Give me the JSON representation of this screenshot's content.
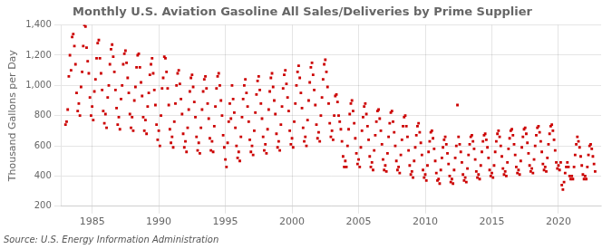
{
  "chart_data": {
    "type": "scatter",
    "title": "Monthly U.S. Aviation Gasoline All Sales/Deliveries by Prime Supplier",
    "ylabel": "Thousand Gallons per Day",
    "source": "Source: U.S. Energy Information Administration",
    "color": "#cc0000",
    "marker": "square",
    "grid": true,
    "xlim": [
      1982.7,
      2023.2
    ],
    "xticks": [
      1985,
      1990,
      1995,
      2000,
      2005,
      2010,
      2015,
      2020
    ],
    "ylim": [
      200,
      1400
    ],
    "yticks": [
      200,
      400,
      600,
      800,
      {
        "value": 1000,
        "label": "1,000"
      },
      {
        "value": 1200,
        "label": "1,200"
      },
      {
        "value": 1400,
        "label": "1,400"
      }
    ],
    "x": [
      1983.0,
      1983.083,
      1983.167,
      1983.25,
      1983.333,
      1983.417,
      1983.5,
      1983.583,
      1983.667,
      1983.75,
      1983.833,
      1983.917,
      1984.0,
      1984.083,
      1984.167,
      1984.25,
      1984.333,
      1984.417,
      1984.5,
      1984.583,
      1984.667,
      1984.75,
      1984.833,
      1984.917,
      1985.0,
      1985.083,
      1985.167,
      1985.25,
      1985.333,
      1985.417,
      1985.5,
      1985.583,
      1985.667,
      1985.75,
      1985.833,
      1985.917,
      1986.0,
      1986.083,
      1986.167,
      1986.25,
      1986.333,
      1986.417,
      1986.5,
      1986.583,
      1986.667,
      1986.75,
      1986.833,
      1986.917,
      1987.0,
      1987.083,
      1987.167,
      1987.25,
      1987.333,
      1987.417,
      1987.5,
      1987.583,
      1987.667,
      1987.75,
      1987.833,
      1987.917,
      1988.0,
      1988.083,
      1988.167,
      1988.25,
      1988.333,
      1988.417,
      1988.5,
      1988.583,
      1988.667,
      1988.75,
      1988.833,
      1988.917,
      1989.0,
      1989.083,
      1989.167,
      1989.25,
      1989.333,
      1989.417,
      1989.5,
      1989.583,
      1989.667,
      1989.75,
      1989.833,
      1989.917,
      1990.0,
      1990.083,
      1990.167,
      1990.25,
      1990.333,
      1990.417,
      1990.5,
      1990.583,
      1990.667,
      1990.75,
      1990.833,
      1990.917,
      1991.0,
      1991.083,
      1991.167,
      1991.25,
      1991.333,
      1991.417,
      1991.5,
      1991.583,
      1991.667,
      1991.75,
      1991.833,
      1991.917,
      1992.0,
      1992.083,
      1992.167,
      1992.25,
      1992.333,
      1992.417,
      1992.5,
      1992.583,
      1992.667,
      1992.75,
      1992.833,
      1992.917,
      1993.0,
      1993.083,
      1993.167,
      1993.25,
      1993.333,
      1993.417,
      1993.5,
      1993.583,
      1993.667,
      1993.75,
      1993.833,
      1993.917,
      1994.0,
      1994.083,
      1994.167,
      1994.25,
      1994.333,
      1994.417,
      1994.5,
      1994.583,
      1994.667,
      1994.75,
      1994.833,
      1994.917,
      1995.0,
      1995.083,
      1995.167,
      1995.25,
      1995.333,
      1995.417,
      1995.5,
      1995.583,
      1995.667,
      1995.75,
      1995.833,
      1995.917,
      1996.0,
      1996.083,
      1996.167,
      1996.25,
      1996.333,
      1996.417,
      1996.5,
      1996.583,
      1996.667,
      1996.75,
      1996.833,
      1996.917,
      1997.0,
      1997.083,
      1997.167,
      1997.25,
      1997.333,
      1997.417,
      1997.5,
      1997.583,
      1997.667,
      1997.75,
      1997.833,
      1997.917,
      1998.0,
      1998.083,
      1998.167,
      1998.25,
      1998.333,
      1998.417,
      1998.5,
      1998.583,
      1998.667,
      1998.75,
      1998.833,
      1998.917,
      1999.0,
      1999.083,
      1999.167,
      1999.25,
      1999.333,
      1999.417,
      1999.5,
      1999.583,
      1999.667,
      1999.75,
      1999.833,
      1999.917,
      2000.0,
      2000.083,
      2000.167,
      2000.25,
      2000.333,
      2000.417,
      2000.5,
      2000.583,
      2000.667,
      2000.75,
      2000.833,
      2000.917,
      2001.0,
      2001.083,
      2001.167,
      2001.25,
      2001.333,
      2001.417,
      2001.5,
      2001.583,
      2001.667,
      2001.75,
      2001.833,
      2001.917,
      2002.0,
      2002.083,
      2002.167,
      2002.25,
      2002.333,
      2002.417,
      2002.5,
      2002.583,
      2002.667,
      2002.75,
      2002.833,
      2002.917,
      2003.0,
      2003.083,
      2003.167,
      2003.25,
      2003.333,
      2003.417,
      2003.5,
      2003.583,
      2003.667,
      2003.75,
      2003.833,
      2003.917,
      2004.0,
      2004.083,
      2004.167,
      2004.25,
      2004.333,
      2004.417,
      2004.5,
      2004.583,
      2004.667,
      2004.75,
      2004.833,
      2004.917,
      2005.0,
      2005.083,
      2005.167,
      2005.25,
      2005.333,
      2005.417,
      2005.5,
      2005.583,
      2005.667,
      2005.75,
      2005.833,
      2005.917,
      2006.0,
      2006.083,
      2006.167,
      2006.25,
      2006.333,
      2006.417,
      2006.5,
      2006.583,
      2006.667,
      2006.75,
      2006.833,
      2006.917,
      2007.0,
      2007.083,
      2007.167,
      2007.25,
      2007.333,
      2007.417,
      2007.5,
      2007.583,
      2007.667,
      2007.75,
      2007.833,
      2007.917,
      2008.0,
      2008.083,
      2008.167,
      2008.25,
      2008.333,
      2008.417,
      2008.5,
      2008.583,
      2008.667,
      2008.75,
      2008.833,
      2008.917,
      2009.0,
      2009.083,
      2009.167,
      2009.25,
      2009.333,
      2009.417,
      2009.5,
      2009.583,
      2009.667,
      2009.75,
      2009.833,
      2009.917,
      2010.0,
      2010.083,
      2010.167,
      2010.25,
      2010.333,
      2010.417,
      2010.5,
      2010.583,
      2010.667,
      2010.75,
      2010.833,
      2010.917,
      2011.0,
      2011.083,
      2011.167,
      2011.25,
      2011.333,
      2011.417,
      2011.5,
      2011.583,
      2011.667,
      2011.75,
      2011.833,
      2011.917,
      2012.0,
      2012.083,
      2012.167,
      2012.25,
      2012.333,
      2012.417,
      2012.5,
      2012.583,
      2012.667,
      2012.75,
      2012.833,
      2012.917,
      2013.0,
      2013.083,
      2013.167,
      2013.25,
      2013.333,
      2013.417,
      2013.5,
      2013.583,
      2013.667,
      2013.75,
      2013.833,
      2013.917,
      2014.0,
      2014.083,
      2014.167,
      2014.25,
      2014.333,
      2014.417,
      2014.5,
      2014.583,
      2014.667,
      2014.75,
      2014.833,
      2014.917,
      2015.0,
      2015.083,
      2015.167,
      2015.25,
      2015.333,
      2015.417,
      2015.5,
      2015.583,
      2015.667,
      2015.75,
      2015.833,
      2015.917,
      2016.0,
      2016.083,
      2016.167,
      2016.25,
      2016.333,
      2016.417,
      2016.5,
      2016.583,
      2016.667,
      2016.75,
      2016.833,
      2016.917,
      2017.0,
      2017.083,
      2017.167,
      2017.25,
      2017.333,
      2017.417,
      2017.5,
      2017.583,
      2017.667,
      2017.75,
      2017.833,
      2017.917,
      2018.0,
      2018.083,
      2018.167,
      2018.25,
      2018.333,
      2018.417,
      2018.5,
      2018.583,
      2018.667,
      2018.75,
      2018.833,
      2018.917,
      2019.0,
      2019.083,
      2019.167,
      2019.25,
      2019.333,
      2019.417,
      2019.5,
      2019.583,
      2019.667,
      2019.75,
      2019.833,
      2019.917,
      2020.0,
      2020.083,
      2020.167,
      2020.25,
      2020.333,
      2020.417,
      2020.5,
      2020.583,
      2020.667,
      2020.75,
      2020.833,
      2020.917,
      2021.0,
      2021.083,
      2021.167,
      2021.25,
      2021.333,
      2021.417,
      2021.5,
      2021.583,
      2021.667,
      2021.75,
      2021.833,
      2021.917,
      2022.0,
      2022.083,
      2022.167,
      2022.25,
      2022.333,
      2022.417,
      2022.5,
      2022.583,
      2022.667,
      2022.75
    ],
    "values": [
      740,
      760,
      840,
      1060,
      1200,
      1100,
      1320,
      1340,
      1260,
      1140,
      950,
      830,
      880,
      800,
      990,
      1090,
      1260,
      1400,
      1390,
      1250,
      1160,
      1080,
      920,
      800,
      860,
      770,
      960,
      1040,
      1180,
      1280,
      1300,
      1180,
      1080,
      970,
      830,
      750,
      810,
      720,
      920,
      1000,
      1140,
      1240,
      1270,
      1190,
      1090,
      970,
      850,
      740,
      790,
      710,
      910,
      1000,
      1140,
      1210,
      1230,
      1150,
      1050,
      950,
      810,
      720,
      790,
      700,
      900,
      990,
      1120,
      1200,
      1210,
      1120,
      1020,
      930,
      790,
      700,
      770,
      680,
      860,
      950,
      1070,
      1140,
      1180,
      1080,
      970,
      870,
      740,
      640,
      700,
      600,
      800,
      980,
      1050,
      1190,
      1180,
      1090,
      980,
      870,
      710,
      620,
      660,
      590,
      760,
      880,
      1000,
      1080,
      1100,
      1010,
      910,
      810,
      680,
      590,
      630,
      560,
      720,
      840,
      960,
      1050,
      1070,
      990,
      890,
      790,
      660,
      570,
      620,
      550,
      720,
      840,
      960,
      1040,
      1060,
      980,
      880,
      780,
      650,
      570,
      630,
      560,
      730,
      860,
      980,
      1060,
      1080,
      1000,
      900,
      800,
      670,
      590,
      510,
      460,
      620,
      760,
      880,
      780,
      1000,
      910,
      820,
      720,
      600,
      520,
      560,
      500,
      660,
      790,
      910,
      1000,
      1040,
      950,
      860,
      760,
      640,
      560,
      600,
      540,
      700,
      820,
      940,
      1030,
      1060,
      970,
      880,
      780,
      660,
      570,
      610,
      550,
      710,
      840,
      960,
      1050,
      1080,
      990,
      900,
      810,
      680,
      590,
      630,
      570,
      740,
      860,
      980,
      1070,
      1100,
      1010,
      920,
      830,
      700,
      610,
      650,
      590,
      760,
      880,
      1000,
      1090,
      1130,
      1050,
      950,
      850,
      720,
      630,
      660,
      600,
      770,
      900,
      1020,
      1120,
      1150,
      1070,
      970,
      870,
      740,
      650,
      690,
      630,
      800,
      920,
      1040,
      1140,
      1170,
      1090,
      990,
      880,
      750,
      660,
      700,
      640,
      800,
      930,
      940,
      890,
      800,
      760,
      710,
      630,
      530,
      460,
      500,
      460,
      600,
      710,
      810,
      880,
      900,
      830,
      750,
      650,
      550,
      480,
      510,
      460,
      590,
      700,
      790,
      860,
      880,
      810,
      730,
      640,
      530,
      460,
      490,
      440,
      570,
      670,
      760,
      830,
      840,
      780,
      700,
      610,
      510,
      440,
      470,
      430,
      550,
      660,
      750,
      820,
      830,
      760,
      690,
      600,
      500,
      440,
      460,
      420,
      540,
      640,
      730,
      790,
      800,
      730,
      660,
      570,
      470,
      410,
      430,
      390,
      500,
      590,
      670,
      730,
      750,
      690,
      620,
      540,
      440,
      390,
      410,
      370,
      470,
      560,
      630,
      690,
      700,
      650,
      580,
      500,
      420,
      370,
      380,
      350,
      440,
      520,
      590,
      640,
      660,
      610,
      550,
      480,
      400,
      360,
      380,
      350,
      440,
      520,
      600,
      870,
      660,
      610,
      560,
      490,
      410,
      370,
      390,
      360,
      450,
      540,
      610,
      660,
      670,
      630,
      580,
      510,
      430,
      390,
      410,
      380,
      470,
      560,
      630,
      670,
      680,
      640,
      590,
      520,
      440,
      400,
      420,
      390,
      470,
      560,
      630,
      680,
      700,
      660,
      600,
      530,
      450,
      410,
      430,
      400,
      490,
      580,
      650,
      700,
      710,
      670,
      610,
      540,
      460,
      420,
      440,
      410,
      500,
      590,
      660,
      710,
      720,
      680,
      620,
      550,
      470,
      430,
      450,
      420,
      510,
      600,
      670,
      720,
      730,
      690,
      630,
      560,
      480,
      440,
      460,
      430,
      520,
      610,
      680,
      730,
      740,
      700,
      640,
      570,
      490,
      450,
      470,
      440,
      490,
      340,
      310,
      360,
      420,
      460,
      490,
      460,
      400,
      380,
      400,
      380,
      460,
      540,
      610,
      660,
      630,
      590,
      530,
      470,
      410,
      380,
      400,
      380,
      460,
      540,
      600,
      610,
      580,
      530,
      480,
      430
    ]
  }
}
